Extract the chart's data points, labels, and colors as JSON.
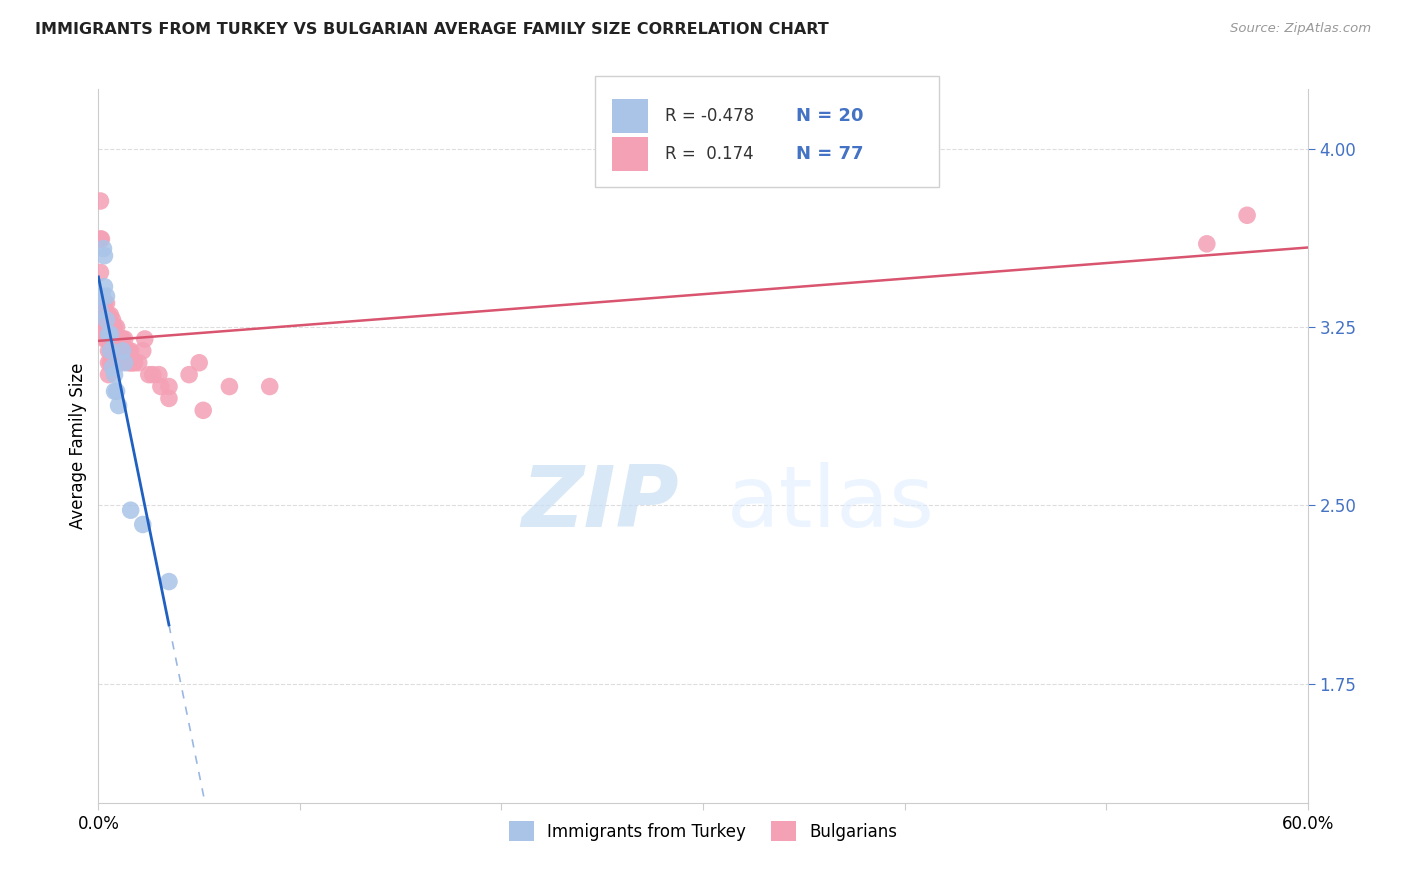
{
  "title": "IMMIGRANTS FROM TURKEY VS BULGARIAN AVERAGE FAMILY SIZE CORRELATION CHART",
  "source": "Source: ZipAtlas.com",
  "ylabel": "Average Family Size",
  "xlim": [
    0.0,
    0.6
  ],
  "ylim": [
    1.25,
    4.25
  ],
  "yticks": [
    1.75,
    2.5,
    3.25,
    4.0
  ],
  "xticks": [
    0.0,
    0.1,
    0.2,
    0.3,
    0.4,
    0.5,
    0.6
  ],
  "xticklabels": [
    "0.0%",
    "",
    "",
    "",
    "",
    "",
    "60.0%"
  ],
  "yticklabels_right": [
    "1.75",
    "2.50",
    "3.25",
    "4.00"
  ],
  "turkey_color": "#aac4e8",
  "bulgarian_color": "#f4a0b5",
  "turkey_line_color": "#2060c0",
  "bulgarian_line_color": "#d9546e",
  "turkey_R": -0.478,
  "turkey_N": 20,
  "bulgarian_R": 0.174,
  "bulgarian_N": 77,
  "legend_label1": "Immigrants from Turkey",
  "legend_label2": "Bulgarians",
  "watermark_zip": "ZIP",
  "watermark_atlas": "atlas",
  "background_color": "#ffffff",
  "grid_color": "#dddddd",
  "turkey_x": [
    0.001,
    0.002,
    0.0025,
    0.003,
    0.003,
    0.004,
    0.004,
    0.005,
    0.006,
    0.006,
    0.007,
    0.008,
    0.008,
    0.009,
    0.01,
    0.012,
    0.013,
    0.016,
    0.022,
    0.035
  ],
  "turkey_y": [
    3.32,
    3.38,
    3.58,
    3.42,
    3.55,
    3.38,
    3.28,
    3.22,
    3.22,
    3.15,
    3.08,
    3.05,
    2.98,
    2.98,
    2.92,
    3.15,
    3.1,
    2.48,
    2.42,
    2.18
  ],
  "bulgarian_x": [
    0.0005,
    0.001,
    0.001,
    0.001,
    0.0015,
    0.002,
    0.002,
    0.002,
    0.002,
    0.0025,
    0.003,
    0.003,
    0.003,
    0.003,
    0.003,
    0.003,
    0.003,
    0.004,
    0.004,
    0.004,
    0.004,
    0.005,
    0.005,
    0.005,
    0.005,
    0.005,
    0.005,
    0.005,
    0.006,
    0.006,
    0.006,
    0.006,
    0.006,
    0.007,
    0.007,
    0.007,
    0.007,
    0.007,
    0.008,
    0.008,
    0.008,
    0.008,
    0.009,
    0.009,
    0.009,
    0.01,
    0.01,
    0.01,
    0.011,
    0.011,
    0.012,
    0.012,
    0.013,
    0.013,
    0.014,
    0.015,
    0.015,
    0.016,
    0.016,
    0.017,
    0.018,
    0.02,
    0.022,
    0.023,
    0.025,
    0.027,
    0.03,
    0.031,
    0.035,
    0.045,
    0.05,
    0.052,
    0.065,
    0.085,
    0.035,
    0.55,
    0.57
  ],
  "bulgarian_y": [
    3.3,
    3.78,
    3.62,
    3.48,
    3.62,
    3.35,
    3.3,
    3.28,
    3.25,
    3.28,
    3.35,
    3.35,
    3.3,
    3.3,
    3.28,
    3.25,
    3.2,
    3.35,
    3.28,
    3.25,
    3.2,
    3.3,
    3.28,
    3.25,
    3.2,
    3.15,
    3.1,
    3.05,
    3.3,
    3.25,
    3.2,
    3.15,
    3.1,
    3.28,
    3.25,
    3.2,
    3.15,
    3.1,
    3.25,
    3.2,
    3.15,
    3.1,
    3.25,
    3.2,
    3.1,
    3.2,
    3.15,
    3.1,
    3.2,
    3.1,
    3.2,
    3.15,
    3.2,
    3.15,
    3.15,
    3.15,
    3.1,
    3.15,
    3.1,
    3.1,
    3.1,
    3.1,
    3.15,
    3.2,
    3.05,
    3.05,
    3.05,
    3.0,
    3.0,
    3.05,
    3.1,
    2.9,
    3.0,
    3.0,
    2.95,
    3.6,
    3.72
  ]
}
